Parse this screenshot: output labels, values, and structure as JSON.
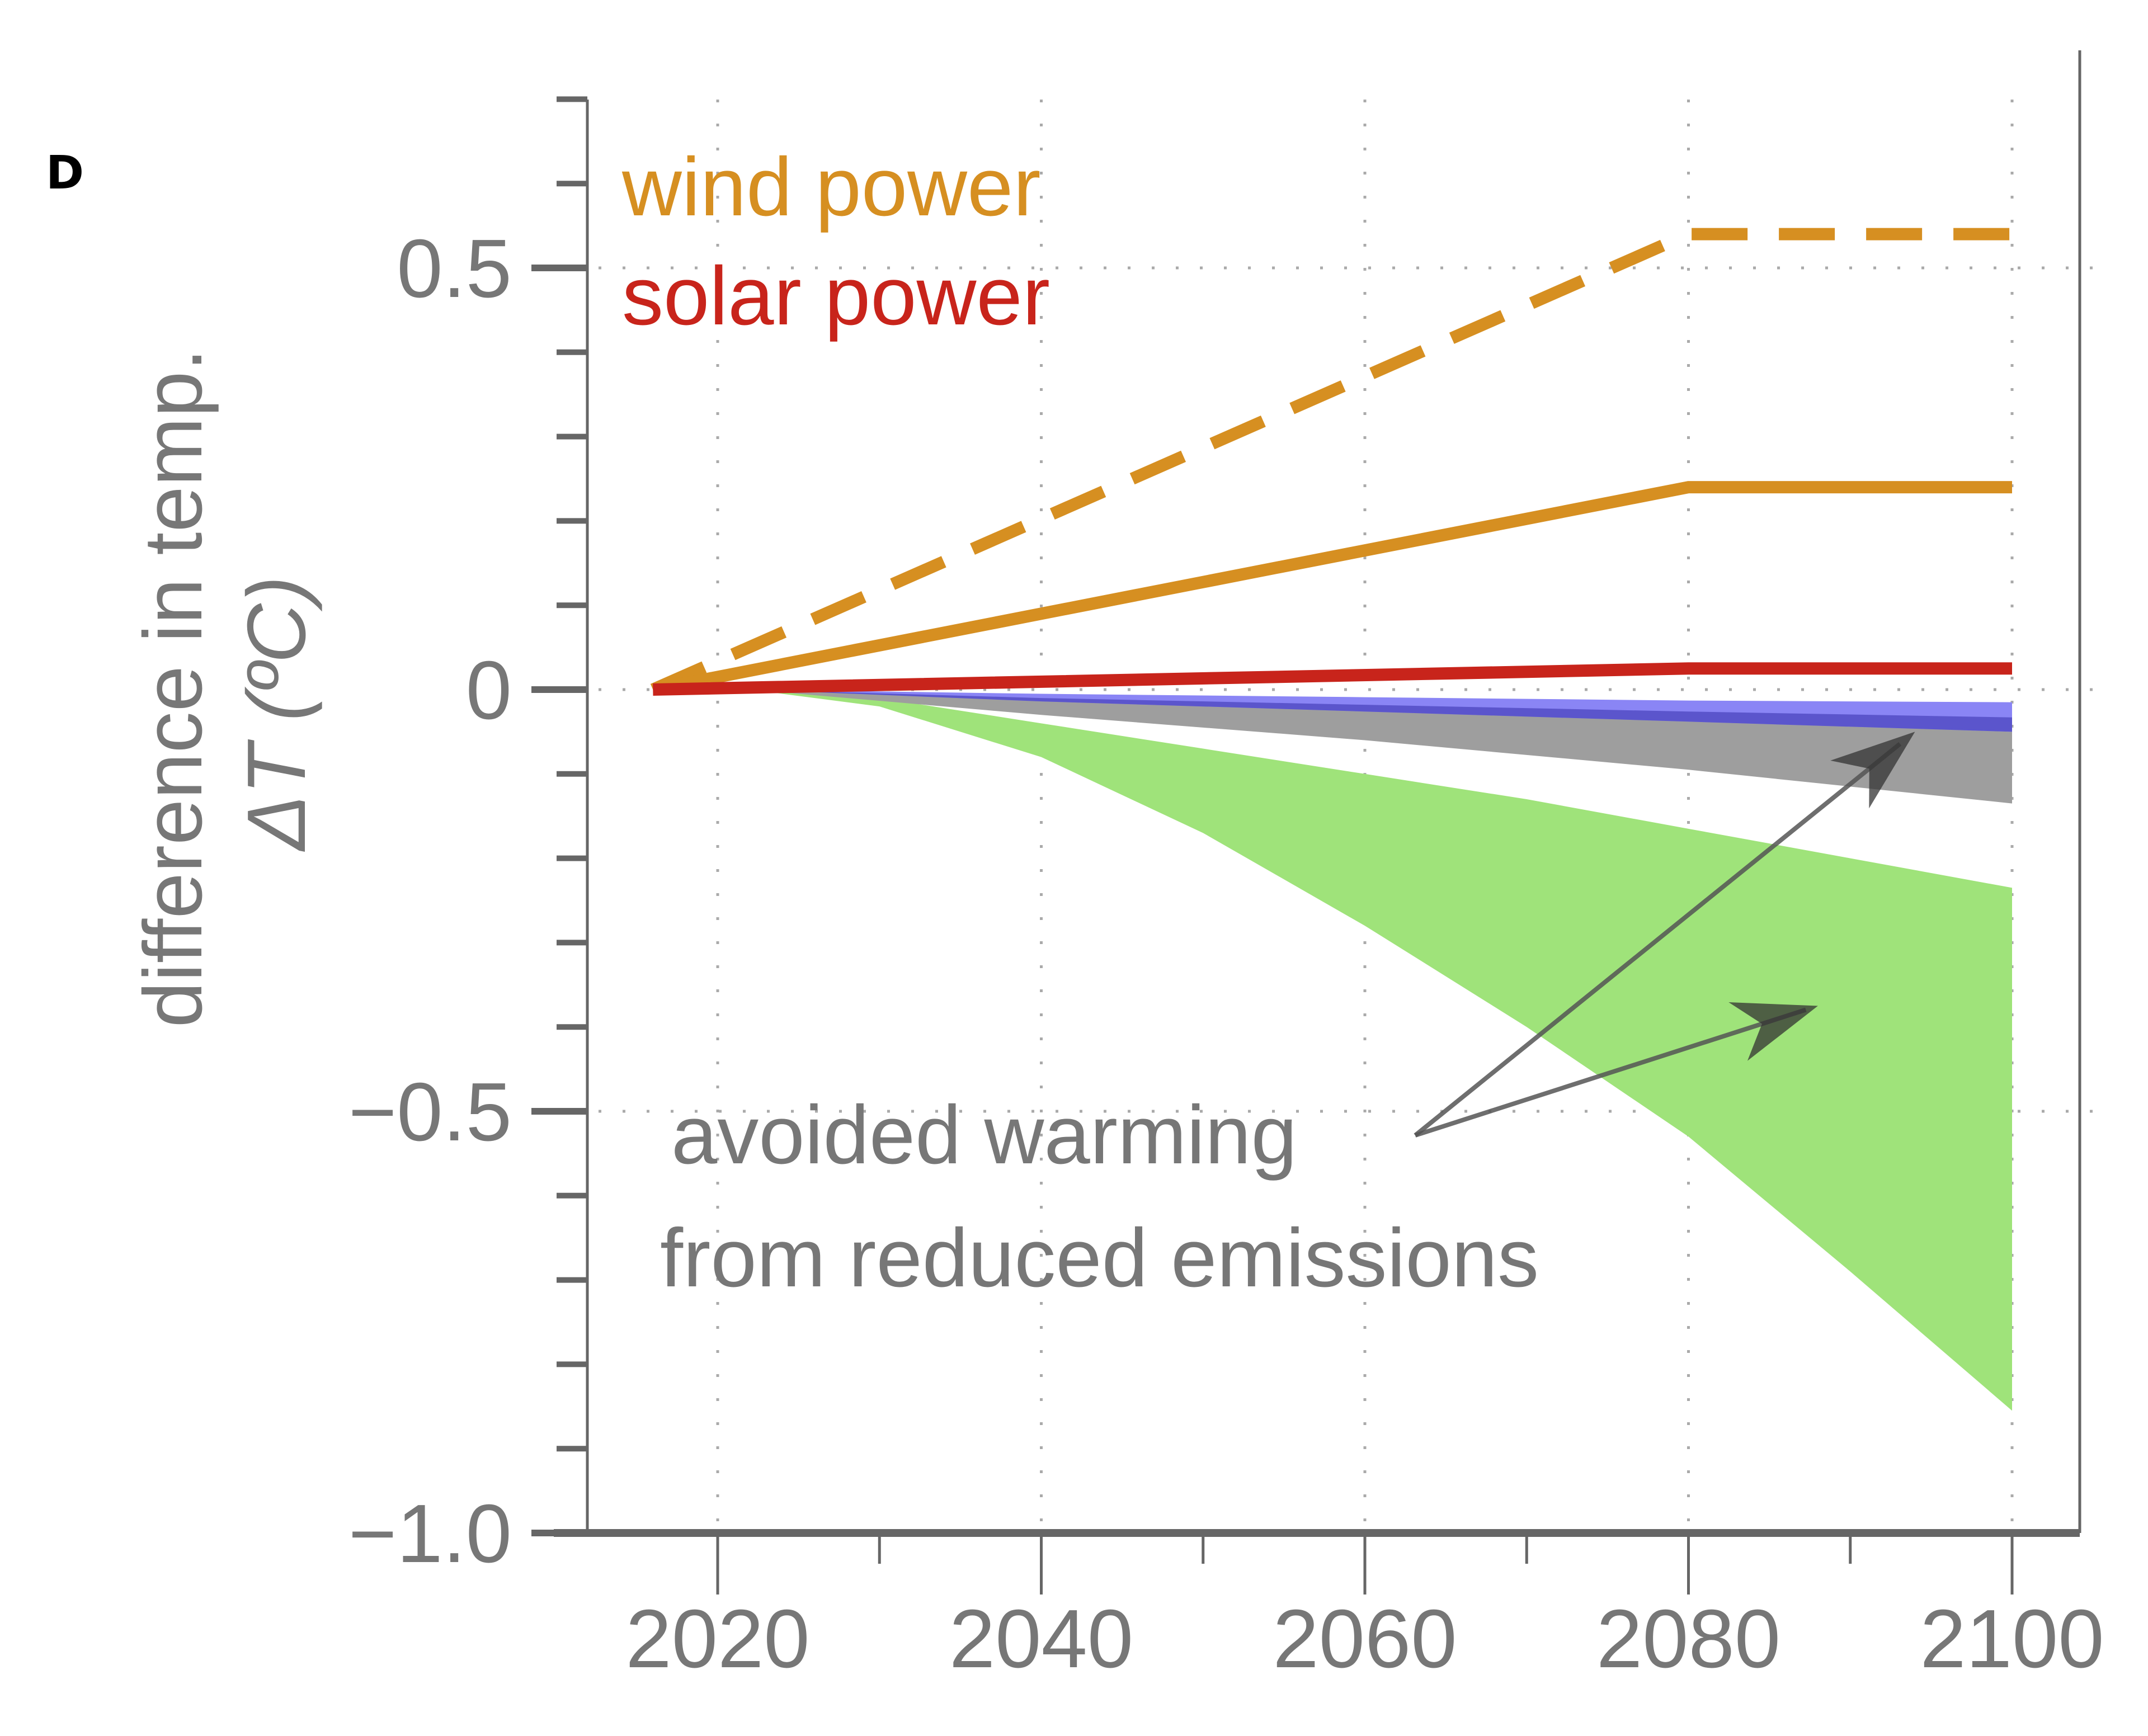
{
  "panel_label": "D",
  "chart_data": {
    "type": "line",
    "title": "",
    "xlabel": "",
    "ylabel_line1": "difference in temp.",
    "ylabel_line2": "ΔT (ºC)",
    "xlim": [
      2012,
      2104
    ],
    "ylim": [
      -1.0,
      0.7
    ],
    "grid": true,
    "x_ticks": [
      2020,
      2040,
      2060,
      2080,
      2100
    ],
    "x_tick_labels": [
      "2020",
      "2040",
      "2060",
      "2080",
      "2100"
    ],
    "x_minor_ticks": [
      2030,
      2050,
      2070,
      2090
    ],
    "y_ticks": [
      -1.0,
      -0.5,
      0,
      0.5
    ],
    "y_tick_labels": [
      "−1.0",
      "−0.5",
      "0",
      "0.5"
    ],
    "y_minor_ticks": [
      -0.9,
      -0.8,
      -0.7,
      -0.6,
      -0.4,
      -0.3,
      -0.2,
      -0.1,
      0.1,
      0.2,
      0.3,
      0.4,
      0.6,
      0.7
    ],
    "legend": {
      "placement": "top-left",
      "entries": [
        {
          "label": "wind power",
          "color": "#D68F21"
        },
        {
          "label": "solar power",
          "color": "#C8241B"
        }
      ]
    },
    "series": [
      {
        "name": "wind power (high)",
        "style": "dashed",
        "color": "#D68F21",
        "x": [
          2016,
          2080,
          2100
        ],
        "y": [
          0,
          0.54,
          0.54
        ]
      },
      {
        "name": "wind power",
        "style": "solid",
        "color": "#D68F21",
        "x": [
          2016,
          2080,
          2100
        ],
        "y": [
          0,
          0.24,
          0.24
        ]
      },
      {
        "name": "solar power",
        "style": "solid",
        "color": "#C8241B",
        "x": [
          2016,
          2080,
          2100
        ],
        "y": [
          0,
          0.025,
          0.025
        ]
      }
    ],
    "bands": [
      {
        "name": "avoided warming (wide range)",
        "color": "#9FE37A",
        "x": [
          2022,
          2030,
          2040,
          2050,
          2060,
          2070,
          2080,
          2090,
          2100
        ],
        "upper": [
          0,
          -0.01,
          -0.04,
          -0.07,
          -0.1,
          -0.13,
          -0.165,
          -0.2,
          -0.235
        ],
        "lower": [
          0,
          -0.02,
          -0.08,
          -0.17,
          -0.28,
          -0.4,
          -0.53,
          -0.69,
          -0.855
        ]
      },
      {
        "name": "avoided warming (narrow range)",
        "color": "#9E9E9E",
        "x": [
          2022,
          2040,
          2060,
          2080,
          2100
        ],
        "upper": [
          0,
          -0.012,
          -0.025,
          -0.037,
          -0.05
        ],
        "lower": [
          0,
          -0.03,
          -0.06,
          -0.095,
          -0.135
        ]
      },
      {
        "name": "blue band",
        "color": "#8A85F5",
        "x": [
          2022,
          2040,
          2060,
          2080,
          2100
        ],
        "upper": [
          0,
          -0.005,
          -0.009,
          -0.013,
          -0.015
        ],
        "lower": [
          0,
          -0.014,
          -0.026,
          -0.038,
          -0.05
        ]
      },
      {
        "name": "blue band (dark)",
        "color": "#5B55CC",
        "x": [
          2022,
          2040,
          2060,
          2080,
          2100
        ],
        "upper": [
          0,
          -0.01,
          -0.018,
          -0.026,
          -0.033
        ],
        "lower": [
          0,
          -0.014,
          -0.026,
          -0.038,
          -0.05
        ]
      }
    ],
    "annotations": [
      {
        "text_line1": "avoided warming",
        "text_line2": "from reduced emissions",
        "color": "#777777",
        "arrows_to": [
          {
            "x": 2094,
            "y": -0.05
          },
          {
            "x": 2088,
            "y": -0.375
          }
        ]
      }
    ]
  }
}
